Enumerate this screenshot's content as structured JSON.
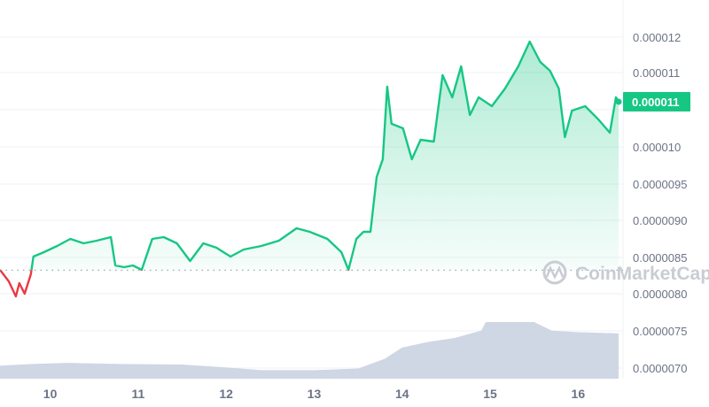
{
  "chart_data": {
    "type": "area",
    "title": "",
    "xlabel": "",
    "ylabel": "",
    "x_ticks": [
      "10",
      "11",
      "12",
      "13",
      "14",
      "15",
      "16"
    ],
    "y_tick_labels": [
      "0.000012",
      "0.000011",
      "0.000010",
      "0.0000095",
      "0.0000090",
      "0.0000085",
      "0.0000080",
      "0.0000075",
      "0.0000070"
    ],
    "ylim": [
      7e-06,
      1.22e-05
    ],
    "xlim": [
      9.43,
      16.46
    ],
    "grid": true,
    "baseline_price": 8.33e-06,
    "current_price_label": "0.000011",
    "watermark": "CoinMarketCap",
    "colors": {
      "up": "#16c784",
      "down": "#ea3943",
      "volume": "#cfd6e4",
      "badge": "#16c784",
      "grid": "#eff2f5"
    },
    "price_series": {
      "x": [
        9.43,
        9.53,
        9.61,
        9.65,
        9.71,
        9.78,
        9.81,
        9.93,
        10.08,
        10.23,
        10.38,
        10.53,
        10.69,
        10.74,
        10.84,
        10.94,
        11.04,
        11.16,
        11.29,
        11.44,
        11.59,
        11.74,
        11.89,
        12.05,
        12.2,
        12.4,
        12.6,
        12.8,
        12.95,
        13.15,
        13.31,
        13.39,
        13.48,
        13.56,
        13.64,
        13.71,
        13.78,
        13.83,
        13.88,
        14.01,
        14.11,
        14.21,
        14.36,
        14.46,
        14.57,
        14.67,
        14.77,
        14.87,
        15.02,
        15.17,
        15.32,
        15.45,
        15.57,
        15.68,
        15.78,
        15.85,
        15.93,
        16.08,
        16.23,
        16.36,
        16.43,
        16.46
      ],
      "y": [
        8.334e-06,
        8.178e-06,
        7.974e-06,
        8.154e-06,
        8.01e-06,
        8.274e-06,
        8.514e-06,
        8.575e-06,
        8.659e-06,
        8.755e-06,
        8.695e-06,
        8.731e-06,
        8.779e-06,
        8.394e-06,
        8.37e-06,
        8.394e-06,
        8.334e-06,
        8.755e-06,
        8.779e-06,
        8.695e-06,
        8.454e-06,
        8.695e-06,
        8.635e-06,
        8.514e-06,
        8.611e-06,
        8.659e-06,
        8.731e-06,
        8.899e-06,
        8.851e-06,
        8.755e-06,
        8.575e-06,
        8.334e-06,
        8.755e-06,
        8.851e-06,
        8.851e-06,
        9.596e-06,
        9.837e-06,
        1.0822e-05,
        1.0318e-05,
        1.0257e-05,
        9.837e-06,
        1.0101e-05,
        1.0077e-05,
        1.0979e-05,
        1.0678e-05,
        1.1099e-05,
        1.0438e-05,
        1.0678e-05,
        1.0558e-05,
        1.0798e-05,
        1.1099e-05,
        1.1435e-05,
        1.1159e-05,
        1.1039e-05,
        1.0798e-05,
        1.0137e-05,
        1.0498e-05,
        1.0558e-05,
        1.0378e-05,
        1.0197e-05,
        1.0678e-05,
        1.0618e-05
      ]
    },
    "volume_series": {
      "x": [
        9.43,
        9.8,
        10.2,
        10.8,
        11.5,
        12.0,
        12.4,
        13.0,
        13.5,
        13.8,
        14.0,
        14.3,
        14.6,
        14.9,
        14.95,
        15.5,
        15.7,
        16.0,
        16.46
      ],
      "relative": [
        0.23,
        0.26,
        0.28,
        0.26,
        0.25,
        0.2,
        0.15,
        0.15,
        0.18,
        0.35,
        0.55,
        0.65,
        0.72,
        0.85,
        1.0,
        1.0,
        0.85,
        0.82,
        0.8
      ]
    }
  }
}
